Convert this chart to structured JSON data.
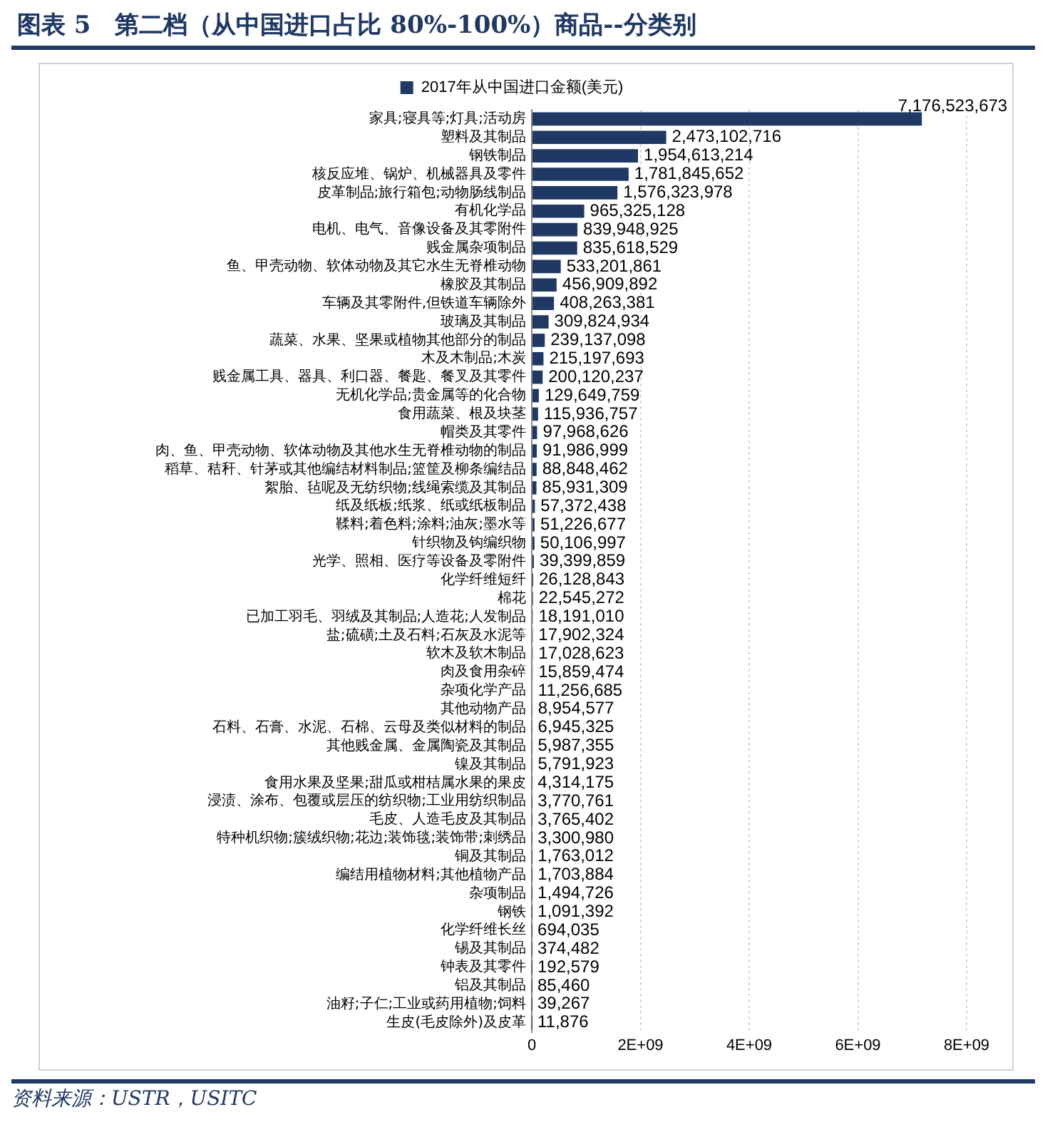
{
  "chart_data": {
    "type": "bar",
    "orientation": "horizontal",
    "title": "图表 5　第二档（从中国进口占比 80%-100%）商品--分类别",
    "categories": [
      "家具;寝具等;灯具;活动房",
      "塑料及其制品",
      "钢铁制品",
      "核反应堆、锅炉、机械器具及零件",
      "皮革制品;旅行箱包;动物肠线制品",
      "有机化学品",
      "电机、电气、音像设备及其零附件",
      "贱金属杂项制品",
      "鱼、甲壳动物、软体动物及其它水生无脊椎动物",
      "橡胶及其制品",
      "车辆及其零附件,但铁道车辆除外",
      "玻璃及其制品",
      "蔬菜、水果、坚果或植物其他部分的制品",
      "木及木制品;木炭",
      "贱金属工具、器具、利口器、餐匙、餐叉及其零件",
      "无机化学品;贵金属等的化合物",
      "食用蔬菜、根及块茎",
      "帽类及其零件",
      "肉、鱼、甲壳动物、软体动物及其他水生无脊椎动物的制品",
      "稻草、秸秆、针茅或其他编结材料制品;篮筐及柳条编结品",
      "絮胎、毡呢及无纺织物;线绳索缆及其制品",
      "纸及纸板;纸浆、纸或纸板制品",
      "鞣料;着色料;涂料;油灰;墨水等",
      "针织物及钩编织物",
      "光学、照相、医疗等设备及零附件",
      "化学纤维短纤",
      "棉花",
      "已加工羽毛、羽绒及其制品;人造花;人发制品",
      "盐;硫磺;土及石料;石灰及水泥等",
      "软木及软木制品",
      "肉及食用杂碎",
      "杂项化学产品",
      "其他动物产品",
      "石料、石膏、水泥、石棉、云母及类似材料的制品",
      "其他贱金属、金属陶瓷及其制品",
      "镍及其制品",
      "食用水果及坚果;甜瓜或柑桔属水果的果皮",
      "浸渍、涂布、包覆或层压的纺织物;工业用纺织制品",
      "毛皮、人造毛皮及其制品",
      "特种机织物;簇绒织物;花边;装饰毯;装饰带;刺绣品",
      "铜及其制品",
      "编结用植物材料;其他植物产品",
      "杂项制品",
      "钢铁",
      "化学纤维长丝",
      "锡及其制品",
      "钟表及其零件",
      "铝及其制品",
      "油籽;子仁;工业或药用植物;饲料",
      "生皮(毛皮除外)及皮革"
    ],
    "series": [
      {
        "name": "2017年从中国进口金额(美元)",
        "color": "#1f3864",
        "values": [
          7176523673,
          2473102716,
          1954613214,
          1781845652,
          1576323978,
          965325128,
          839948925,
          835618529,
          533201861,
          456909892,
          408263381,
          309824934,
          239137098,
          215197693,
          200120237,
          129649759,
          115936757,
          97968626,
          91986999,
          88848462,
          85931309,
          57372438,
          51226677,
          50106997,
          39399859,
          26128843,
          22545272,
          18191010,
          17902324,
          17028623,
          15859474,
          11256685,
          8954577,
          6945325,
          5987355,
          5791923,
          4314175,
          3770761,
          3765402,
          3300980,
          1763012,
          1703884,
          1494726,
          1091392,
          694035,
          374482,
          192579,
          85460,
          39267,
          11876
        ],
        "value_labels": [
          "7,176,523,673",
          "2,473,102,716",
          "1,954,613,214",
          "1,781,845,652",
          "1,576,323,978",
          "965,325,128",
          "839,948,925",
          "835,618,529",
          "533,201,861",
          "456,909,892",
          "408,263,381",
          "309,824,934",
          "239,137,098",
          "215,197,693",
          "200,120,237",
          "129,649,759",
          "115,936,757",
          "97,968,626",
          "91,986,999",
          "88,848,462",
          "85,931,309",
          "57,372,438",
          "51,226,677",
          "50,106,997",
          "39,399,859",
          "26,128,843",
          "22,545,272",
          "18,191,010",
          "17,902,324",
          "17,028,623",
          "15,859,474",
          "11,256,685",
          "8,954,577",
          "6,945,325",
          "5,987,355",
          "5,791,923",
          "4,314,175",
          "3,770,761",
          "3,765,402",
          "3,300,980",
          "1,763,012",
          "1,703,884",
          "1,494,726",
          "1,091,392",
          "694,035",
          "374,482",
          "192,579",
          "85,460",
          "39,267",
          "11,876"
        ]
      }
    ],
    "xlim": [
      0,
      8000000000
    ],
    "xticks": [
      0,
      {
        "value": 2000000000,
        "label": "2E+09"
      },
      {
        "value": 4000000000,
        "label": "4E+09"
      },
      {
        "value": 6000000000,
        "label": "6E+09"
      },
      {
        "value": 8000000000,
        "label": "8E+09"
      }
    ],
    "grid": "x",
    "legend": "top",
    "annotations": [
      "资料来源：USTR，USITC"
    ]
  }
}
